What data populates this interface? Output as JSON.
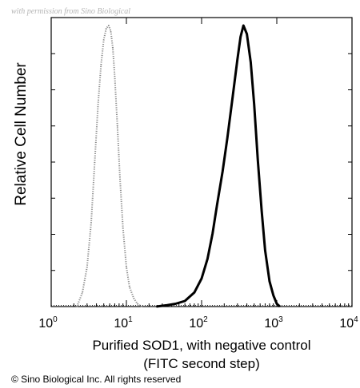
{
  "watermark": "with permission from Sino Biological",
  "copyright": "© Sino Biological Inc. All rights reserved",
  "chart_data": {
    "type": "line",
    "title": "",
    "xlabel_line1": "Purified SOD1, with negative control",
    "xlabel_line2": "(FITC second step)",
    "ylabel": "Relative Cell Number",
    "xscale": "log",
    "xlim": [
      1,
      10000
    ],
    "ylim": [
      0,
      1
    ],
    "x_ticks": [
      {
        "base": "10",
        "exp": "0",
        "value": 1
      },
      {
        "base": "10",
        "exp": "1",
        "value": 10
      },
      {
        "base": "10",
        "exp": "2",
        "value": 100
      },
      {
        "base": "10",
        "exp": "3",
        "value": 1000
      },
      {
        "base": "10",
        "exp": "4",
        "value": 10000
      }
    ],
    "grid": false,
    "series": [
      {
        "name": "",
        "style": "dotted",
        "color": "#8a8a8a",
        "x": [
          2.2,
          2.6,
          3.0,
          3.4,
          3.8,
          4.2,
          4.6,
          5.0,
          5.4,
          5.8,
          6.2,
          6.6,
          7.0,
          7.6,
          8.2,
          9.0,
          10.0,
          11.0,
          12.5,
          14.0,
          16.0
        ],
        "y": [
          0.0,
          0.05,
          0.14,
          0.3,
          0.52,
          0.72,
          0.86,
          0.95,
          0.99,
          1.0,
          0.98,
          0.92,
          0.82,
          0.64,
          0.46,
          0.28,
          0.14,
          0.07,
          0.03,
          0.01,
          0.0
        ]
      },
      {
        "name": "",
        "style": "solid",
        "color": "#000000",
        "x": [
          25,
          35,
          45,
          60,
          80,
          100,
          120,
          140,
          160,
          190,
          220,
          260,
          300,
          330,
          360,
          400,
          450,
          500,
          560,
          630,
          700,
          800,
          900,
          1000,
          1100
        ],
        "y": [
          0.0,
          0.005,
          0.01,
          0.02,
          0.05,
          0.1,
          0.17,
          0.26,
          0.36,
          0.48,
          0.6,
          0.75,
          0.88,
          0.96,
          1.0,
          0.97,
          0.87,
          0.72,
          0.52,
          0.34,
          0.2,
          0.09,
          0.04,
          0.01,
          0.0
        ]
      }
    ]
  }
}
